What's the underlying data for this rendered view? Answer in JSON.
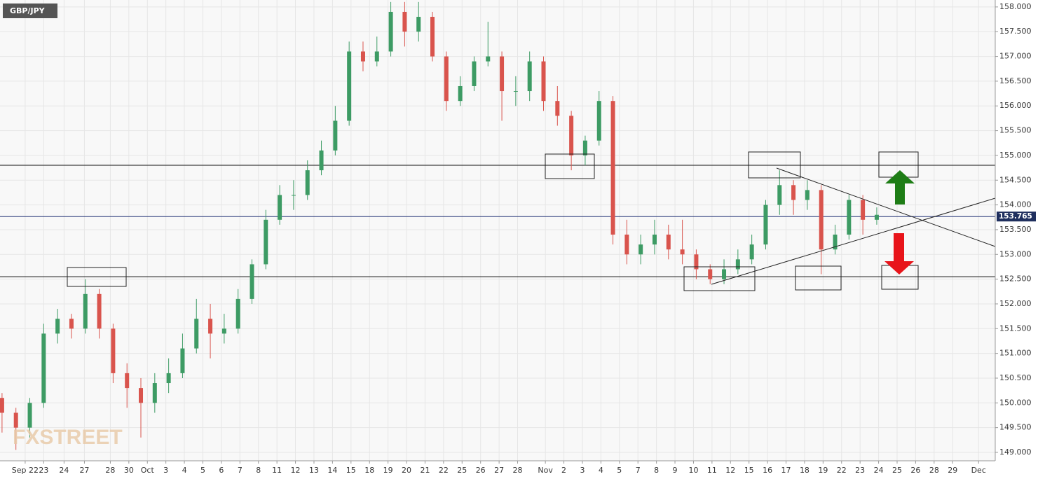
{
  "chart_data": {
    "type": "candlestick",
    "title": "GBP/JPY",
    "watermark": "FXSTREET",
    "up_color": "#3d9b64",
    "down_color": "#d9544d",
    "grid": true,
    "x": [
      -1.25,
      -0.5,
      0.25,
      1,
      1.75,
      2.5,
      3.25,
      4,
      4.75,
      5.5,
      6.25,
      7,
      7.75,
      8.5,
      9.25,
      10,
      10.75,
      11.5,
      12.25,
      13,
      13.75,
      14.5,
      15.25,
      16,
      16.75,
      17.5,
      18.25,
      19,
      19.75,
      20.5,
      21.25,
      22,
      22.75,
      23.5,
      24.25,
      25,
      25.75,
      26.5,
      27.25,
      28,
      28.75,
      29.5,
      30.25,
      31,
      31.75,
      32.5,
      33.25,
      34,
      34.75,
      35.5,
      36.25,
      37,
      37.75,
      38.5,
      39.25,
      40,
      40.75,
      41.5,
      42.25,
      43,
      43.75,
      44.5,
      45.25,
      46
    ],
    "open": [
      150.1,
      149.8,
      149.5,
      150.0,
      151.4,
      151.7,
      151.5,
      152.2,
      151.5,
      150.6,
      150.3,
      150.0,
      150.4,
      150.6,
      151.1,
      151.7,
      151.4,
      151.5,
      152.1,
      152.8,
      153.7,
      154.2,
      154.2,
      154.7,
      155.1,
      155.7,
      157.1,
      156.9,
      157.1,
      157.9,
      157.5,
      157.8,
      157.0,
      156.1,
      156.4,
      156.9,
      157.0,
      156.3,
      156.3,
      156.9,
      156.1,
      155.8,
      155.0,
      155.3,
      156.1,
      153.4,
      153.0,
      153.2,
      153.4,
      153.1,
      153.0,
      152.7,
      152.5,
      152.7,
      152.9,
      153.2,
      154.0,
      154.4,
      154.1,
      154.3,
      153.1,
      153.4,
      154.1,
      153.7
    ],
    "high": [
      150.2,
      149.9,
      150.1,
      151.6,
      151.9,
      151.8,
      152.5,
      152.3,
      151.6,
      150.8,
      150.5,
      150.6,
      150.9,
      151.4,
      152.1,
      152.0,
      151.8,
      152.3,
      152.9,
      153.9,
      154.4,
      154.5,
      154.9,
      155.3,
      156.0,
      157.3,
      157.3,
      157.4,
      158.1,
      158.1,
      158.1,
      157.9,
      157.1,
      156.6,
      157.0,
      157.7,
      157.1,
      156.6,
      157.1,
      157.0,
      156.4,
      155.9,
      155.4,
      156.3,
      156.2,
      153.7,
      153.4,
      153.7,
      153.6,
      153.7,
      153.1,
      152.8,
      152.9,
      153.1,
      153.4,
      154.1,
      154.7,
      154.5,
      154.5,
      154.4,
      153.6,
      154.2,
      154.2,
      153.95
    ],
    "low": [
      149.4,
      149.05,
      149.3,
      149.9,
      151.2,
      151.3,
      151.4,
      151.3,
      150.4,
      149.9,
      149.3,
      149.8,
      150.2,
      150.5,
      151.0,
      150.9,
      151.2,
      151.4,
      152.0,
      152.7,
      153.6,
      153.9,
      154.1,
      154.6,
      155.0,
      155.6,
      156.7,
      156.8,
      157.0,
      157.2,
      157.3,
      156.9,
      155.9,
      156.0,
      156.3,
      156.8,
      155.7,
      156.0,
      156.1,
      155.9,
      155.6,
      154.7,
      154.8,
      155.2,
      153.2,
      152.8,
      152.8,
      153.0,
      152.9,
      152.8,
      152.5,
      152.4,
      152.4,
      152.6,
      152.8,
      153.1,
      153.8,
      153.8,
      153.9,
      152.6,
      153.0,
      153.3,
      153.4,
      153.6
    ],
    "close": [
      149.8,
      149.5,
      150.0,
      151.4,
      151.7,
      151.5,
      152.2,
      151.5,
      150.6,
      150.3,
      150.0,
      150.4,
      150.6,
      151.1,
      151.7,
      151.4,
      151.5,
      152.1,
      152.8,
      153.7,
      154.2,
      154.2,
      154.7,
      155.1,
      155.7,
      157.1,
      156.9,
      157.1,
      157.9,
      157.5,
      157.8,
      157.0,
      156.1,
      156.4,
      156.9,
      157.0,
      156.3,
      156.3,
      156.9,
      156.1,
      155.8,
      155.0,
      155.3,
      156.1,
      153.4,
      153.0,
      153.2,
      153.4,
      153.1,
      153.0,
      152.7,
      152.5,
      152.7,
      152.9,
      153.2,
      154.0,
      154.4,
      154.1,
      154.3,
      153.1,
      153.4,
      154.1,
      153.7,
      153.8
    ],
    "last_price": {
      "value": 153.765,
      "label": "153.765"
    },
    "levels": [
      154.8,
      152.55
    ],
    "xlim": [
      -1.36,
      52.4
    ],
    "ylim": [
      148.83,
      158.14
    ],
    "yticks": [
      {
        "value": 149,
        "label": "149.000"
      },
      {
        "value": 149.5,
        "label": "149.500"
      },
      {
        "value": 150,
        "label": "150.000"
      },
      {
        "value": 150.5,
        "label": "150.500"
      },
      {
        "value": 151,
        "label": "151.000"
      },
      {
        "value": 151.5,
        "label": "151.500"
      },
      {
        "value": 152,
        "label": "152.000"
      },
      {
        "value": 152.5,
        "label": "152.500"
      },
      {
        "value": 153,
        "label": "153.000"
      },
      {
        "value": 153.5,
        "label": "153.500"
      },
      {
        "value": 154,
        "label": "154.000"
      },
      {
        "value": 154.5,
        "label": "154.500"
      },
      {
        "value": 155,
        "label": "155.000"
      },
      {
        "value": 155.5,
        "label": "155.500"
      },
      {
        "value": 156,
        "label": "156.000"
      },
      {
        "value": 156.5,
        "label": "156.500"
      },
      {
        "value": 157,
        "label": "157.000"
      },
      {
        "value": 157.5,
        "label": "157.500"
      },
      {
        "value": 158,
        "label": "158.000"
      }
    ],
    "xticks": [
      {
        "value": 0,
        "label": "Sep 22"
      },
      {
        "value": 1,
        "label": "23"
      },
      {
        "value": 2.1,
        "label": "24"
      },
      {
        "value": 3.2,
        "label": "27"
      },
      {
        "value": 4.6,
        "label": "28"
      },
      {
        "value": 5.6,
        "label": "30"
      },
      {
        "value": 6.6,
        "label": "Oct"
      },
      {
        "value": 7.6,
        "label": "3"
      },
      {
        "value": 8.6,
        "label": "4"
      },
      {
        "value": 9.6,
        "label": "5"
      },
      {
        "value": 10.6,
        "label": "6"
      },
      {
        "value": 11.6,
        "label": "7"
      },
      {
        "value": 12.6,
        "label": "8"
      },
      {
        "value": 13.6,
        "label": "11"
      },
      {
        "value": 14.6,
        "label": "12"
      },
      {
        "value": 15.6,
        "label": "13"
      },
      {
        "value": 16.6,
        "label": "14"
      },
      {
        "value": 17.6,
        "label": "15"
      },
      {
        "value": 18.6,
        "label": "18"
      },
      {
        "value": 19.6,
        "label": "19"
      },
      {
        "value": 20.6,
        "label": "20"
      },
      {
        "value": 21.6,
        "label": "21"
      },
      {
        "value": 22.6,
        "label": "22"
      },
      {
        "value": 23.6,
        "label": "25"
      },
      {
        "value": 24.6,
        "label": "26"
      },
      {
        "value": 25.6,
        "label": "27"
      },
      {
        "value": 26.6,
        "label": "28"
      },
      {
        "value": 28.1,
        "label": "Nov"
      },
      {
        "value": 29.1,
        "label": "2"
      },
      {
        "value": 30.1,
        "label": "3"
      },
      {
        "value": 31.1,
        "label": "4"
      },
      {
        "value": 32.1,
        "label": "5"
      },
      {
        "value": 33.1,
        "label": "7"
      },
      {
        "value": 34.1,
        "label": "8"
      },
      {
        "value": 35.1,
        "label": "9"
      },
      {
        "value": 36.1,
        "label": "10"
      },
      {
        "value": 37.1,
        "label": "11"
      },
      {
        "value": 38.1,
        "label": "12"
      },
      {
        "value": 39.1,
        "label": "15"
      },
      {
        "value": 40.1,
        "label": "16"
      },
      {
        "value": 41.1,
        "label": "17"
      },
      {
        "value": 42.1,
        "label": "18"
      },
      {
        "value": 43.1,
        "label": "19"
      },
      {
        "value": 44.1,
        "label": "22"
      },
      {
        "value": 45.1,
        "label": "23"
      },
      {
        "value": 46.1,
        "label": "24"
      },
      {
        "value": 47.1,
        "label": "25"
      },
      {
        "value": 48.1,
        "label": "26"
      },
      {
        "value": 49.1,
        "label": "28"
      },
      {
        "value": 50.1,
        "label": "29"
      },
      {
        "value": 51.5,
        "label": "Dec"
      }
    ]
  }
}
